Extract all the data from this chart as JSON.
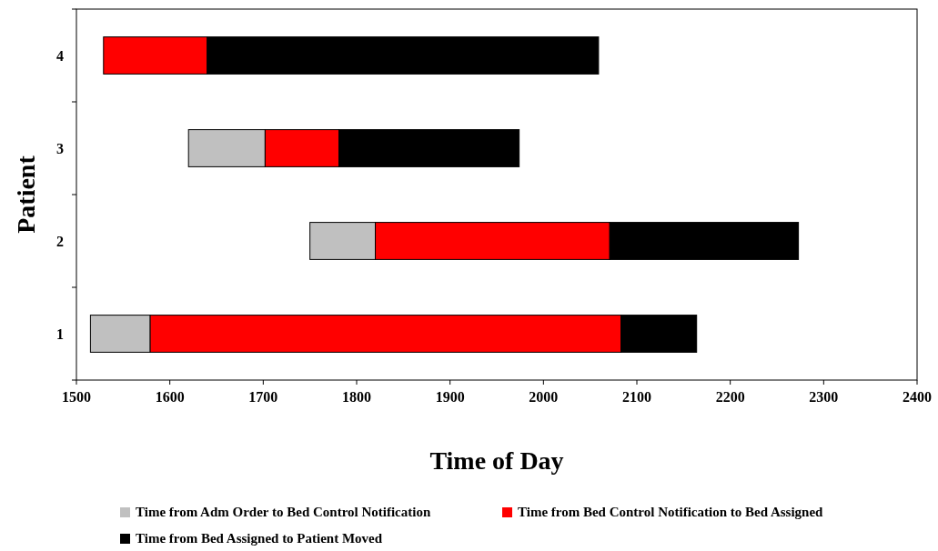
{
  "chart_data": {
    "type": "bar",
    "orientation": "horizontal",
    "xlabel": "Time of Day",
    "ylabel": "Patient",
    "categories": [
      "4",
      "3",
      "2",
      "1"
    ],
    "series": [
      {
        "name": "Time from Adm Order to Bed Control Notification",
        "color": "#c0c0c0",
        "base": [
          null,
          1620,
          1750,
          1515
        ],
        "values": [
          null,
          82,
          70,
          64
        ]
      },
      {
        "name": "Time from Bed Control Notification to Bed Assigned",
        "color": "#ff0000",
        "base": [
          1529,
          1702,
          1820,
          1579
        ],
        "values": [
          111,
          79,
          251,
          504
        ]
      },
      {
        "name": "Time from Bed Assigned to Patient Moved",
        "color": "#000000",
        "base": [
          1640,
          1781,
          2071,
          2083
        ],
        "values": [
          419,
          193,
          202,
          81
        ]
      }
    ],
    "xlim": [
      1500,
      2400
    ],
    "xticks": [
      1500,
      1600,
      1700,
      1800,
      1900,
      2000,
      2100,
      2200,
      2300,
      2400
    ],
    "legend": "bottom",
    "grid": false
  }
}
